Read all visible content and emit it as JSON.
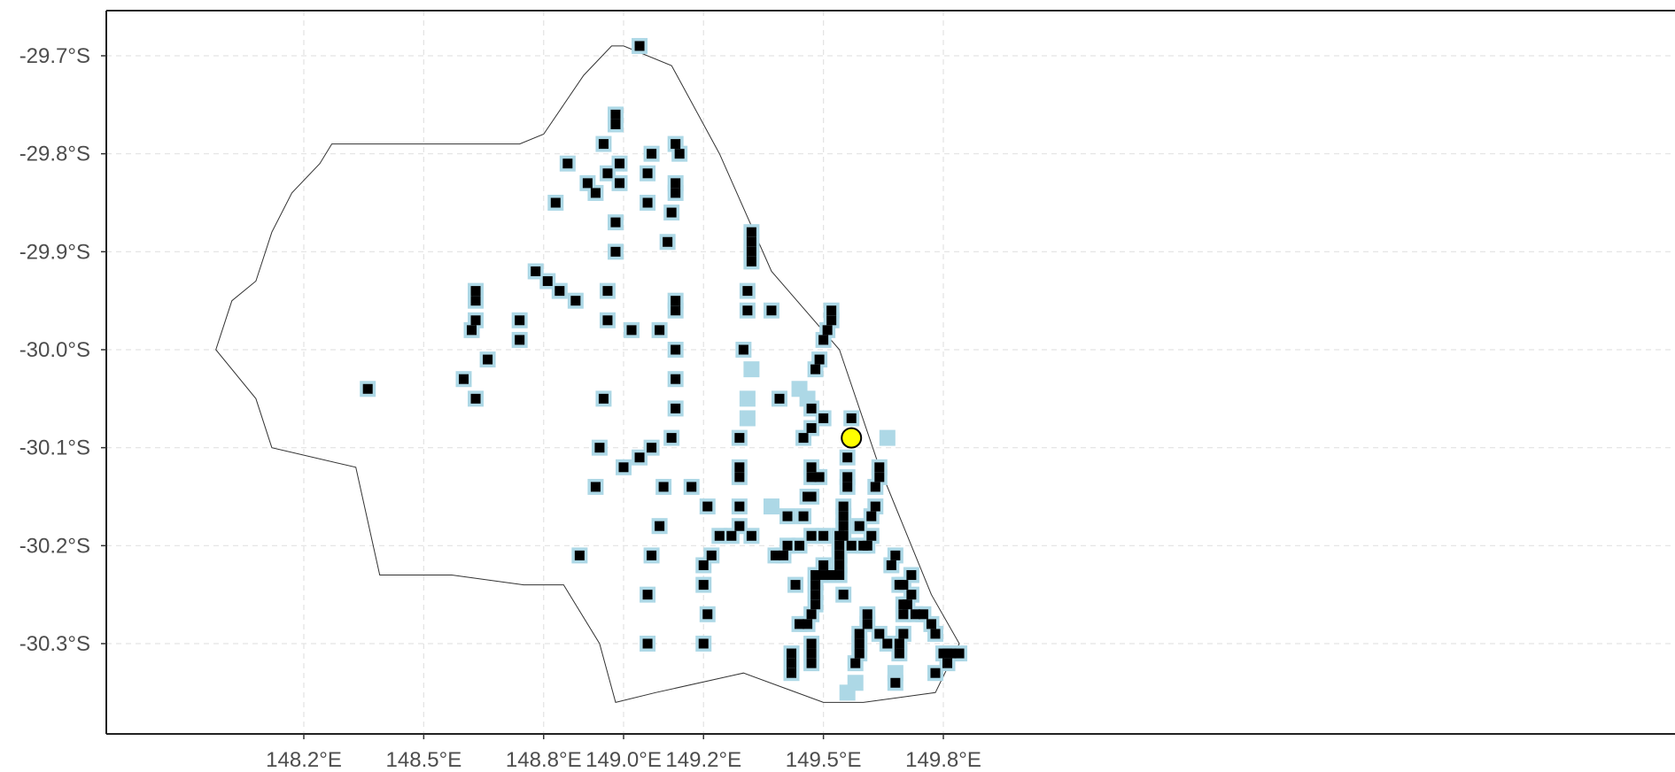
{
  "chart_data": {
    "type": "scatter",
    "title": "",
    "xlabel": "",
    "ylabel": "",
    "x_ticks": [
      {
        "value": 148.2,
        "label": "148.2°E"
      },
      {
        "value": 148.5,
        "label": "148.5°E"
      },
      {
        "value": 148.8,
        "label": "148.8°E"
      },
      {
        "value": 149.0,
        "label": "149.0°E"
      },
      {
        "value": 149.2,
        "label": "149.2°E"
      },
      {
        "value": 149.5,
        "label": "149.5°E"
      },
      {
        "value": 149.8,
        "label": "149.8°E"
      }
    ],
    "y_ticks": [
      {
        "value": -29.7,
        "label": "-29.7°S"
      },
      {
        "value": -29.8,
        "label": "-29.8°S"
      },
      {
        "value": -29.9,
        "label": "-29.9°S"
      },
      {
        "value": -30.0,
        "label": "-30.0°S"
      },
      {
        "value": -30.1,
        "label": "-30.1°S"
      },
      {
        "value": -30.2,
        "label": "-30.2°S"
      },
      {
        "value": -30.3,
        "label": "-30.3°S"
      }
    ],
    "xlim": [
      148.0,
      149.93
    ],
    "ylim": [
      -30.39,
      -29.66
    ],
    "grid": true,
    "colors": {
      "site": "#000000",
      "site_outline": "#add8e6",
      "highlight": "#ffff00",
      "boundary": "#333333"
    },
    "boundary": [
      [
        148.27,
        -29.79
      ],
      [
        148.5,
        -29.79
      ],
      [
        148.74,
        -29.79
      ],
      [
        148.8,
        -29.78
      ],
      [
        148.9,
        -29.72
      ],
      [
        148.97,
        -29.69
      ],
      [
        149.0,
        -29.69
      ],
      [
        149.12,
        -29.71
      ],
      [
        149.24,
        -29.8
      ],
      [
        149.37,
        -29.92
      ],
      [
        149.54,
        -30.0
      ],
      [
        149.64,
        -30.12
      ],
      [
        149.77,
        -30.25
      ],
      [
        149.84,
        -30.3
      ],
      [
        149.78,
        -30.35
      ],
      [
        149.6,
        -30.36
      ],
      [
        149.5,
        -30.36
      ],
      [
        149.3,
        -30.33
      ],
      [
        149.08,
        -30.35
      ],
      [
        148.98,
        -30.36
      ],
      [
        148.94,
        -30.3
      ],
      [
        148.85,
        -30.24
      ],
      [
        148.75,
        -30.24
      ],
      [
        148.57,
        -30.23
      ],
      [
        148.39,
        -30.23
      ],
      [
        148.33,
        -30.12
      ],
      [
        148.12,
        -30.1
      ],
      [
        148.08,
        -30.05
      ],
      [
        147.98,
        -30.0
      ],
      [
        148.02,
        -29.95
      ],
      [
        148.08,
        -29.93
      ],
      [
        148.12,
        -29.88
      ],
      [
        148.17,
        -29.84
      ],
      [
        148.24,
        -29.81
      ],
      [
        148.27,
        -29.79
      ]
    ],
    "series": [
      {
        "name": "",
        "points": [
          [
            149.04,
            -29.69
          ],
          [
            148.98,
            -29.76
          ],
          [
            148.98,
            -29.77
          ],
          [
            148.95,
            -29.79
          ],
          [
            148.99,
            -29.81
          ],
          [
            149.07,
            -29.8
          ],
          [
            148.96,
            -29.82
          ],
          [
            149.06,
            -29.82
          ],
          [
            148.86,
            -29.81
          ],
          [
            148.91,
            -29.83
          ],
          [
            148.93,
            -29.84
          ],
          [
            148.99,
            -29.83
          ],
          [
            148.83,
            -29.85
          ],
          [
            149.06,
            -29.85
          ],
          [
            148.98,
            -29.87
          ],
          [
            149.13,
            -29.79
          ],
          [
            149.14,
            -29.8
          ],
          [
            149.13,
            -29.83
          ],
          [
            149.13,
            -29.84
          ],
          [
            149.12,
            -29.86
          ],
          [
            149.11,
            -29.89
          ],
          [
            148.98,
            -29.9
          ],
          [
            148.78,
            -29.92
          ],
          [
            148.81,
            -29.93
          ],
          [
            148.84,
            -29.94
          ],
          [
            148.88,
            -29.95
          ],
          [
            148.96,
            -29.94
          ],
          [
            148.96,
            -29.97
          ],
          [
            148.74,
            -29.97
          ],
          [
            148.74,
            -29.99
          ],
          [
            148.63,
            -29.94
          ],
          [
            148.63,
            -29.95
          ],
          [
            148.63,
            -29.97
          ],
          [
            148.62,
            -29.98
          ],
          [
            148.6,
            -30.03
          ],
          [
            148.63,
            -30.05
          ],
          [
            148.66,
            -30.01
          ],
          [
            148.36,
            -30.04
          ],
          [
            148.95,
            -30.05
          ],
          [
            149.02,
            -29.98
          ],
          [
            149.09,
            -29.98
          ],
          [
            149.13,
            -29.95
          ],
          [
            149.13,
            -29.96
          ],
          [
            149.13,
            -30.0
          ],
          [
            149.13,
            -30.03
          ],
          [
            149.13,
            -30.06
          ],
          [
            149.12,
            -30.09
          ],
          [
            148.94,
            -30.1
          ],
          [
            149.0,
            -30.12
          ],
          [
            149.04,
            -30.11
          ],
          [
            149.07,
            -30.1
          ],
          [
            148.93,
            -30.14
          ],
          [
            149.1,
            -30.14
          ],
          [
            149.17,
            -30.14
          ],
          [
            149.09,
            -30.18
          ],
          [
            149.07,
            -30.21
          ],
          [
            149.06,
            -30.25
          ],
          [
            148.89,
            -30.21
          ],
          [
            149.06,
            -30.3
          ],
          [
            149.32,
            -29.88
          ],
          [
            149.32,
            -29.89
          ],
          [
            149.32,
            -29.9
          ],
          [
            149.32,
            -29.91
          ],
          [
            149.31,
            -29.94
          ],
          [
            149.31,
            -29.96
          ],
          [
            149.3,
            -30.0
          ],
          [
            149.29,
            -30.09
          ],
          [
            149.29,
            -30.12
          ],
          [
            149.29,
            -30.13
          ],
          [
            149.29,
            -30.16
          ],
          [
            149.29,
            -30.18
          ],
          [
            149.27,
            -30.19
          ],
          [
            149.32,
            -30.19
          ],
          [
            149.24,
            -30.19
          ],
          [
            149.22,
            -30.21
          ],
          [
            149.2,
            -30.22
          ],
          [
            149.2,
            -30.24
          ],
          [
            149.21,
            -30.27
          ],
          [
            149.2,
            -30.3
          ],
          [
            149.21,
            -30.16
          ],
          [
            149.37,
            -29.96
          ],
          [
            149.39,
            -30.05
          ],
          [
            149.41,
            -30.17
          ],
          [
            149.41,
            -30.2
          ],
          [
            149.4,
            -30.21
          ],
          [
            149.38,
            -30.21
          ],
          [
            149.45,
            -30.09
          ],
          [
            149.47,
            -30.08
          ],
          [
            149.47,
            -30.06
          ],
          [
            149.48,
            -30.02
          ],
          [
            149.49,
            -30.01
          ],
          [
            149.5,
            -29.99
          ],
          [
            149.51,
            -29.98
          ],
          [
            149.52,
            -29.97
          ],
          [
            149.52,
            -29.96
          ],
          [
            149.5,
            -30.07
          ],
          [
            149.47,
            -30.12
          ],
          [
            149.47,
            -30.13
          ],
          [
            149.47,
            -30.15
          ],
          [
            149.46,
            -30.15
          ],
          [
            149.45,
            -30.17
          ],
          [
            149.47,
            -30.19
          ],
          [
            149.44,
            -30.2
          ],
          [
            149.49,
            -30.13
          ],
          [
            149.5,
            -30.19
          ],
          [
            149.48,
            -30.23
          ],
          [
            149.5,
            -30.23
          ],
          [
            149.5,
            -30.22
          ],
          [
            149.52,
            -30.23
          ],
          [
            149.54,
            -30.19
          ],
          [
            149.48,
            -30.24
          ],
          [
            149.46,
            -30.28
          ],
          [
            149.48,
            -30.25
          ],
          [
            149.48,
            -30.26
          ],
          [
            149.47,
            -30.27
          ],
          [
            149.47,
            -30.3
          ],
          [
            149.47,
            -30.31
          ],
          [
            149.47,
            -30.32
          ],
          [
            149.42,
            -30.31
          ],
          [
            149.42,
            -30.32
          ],
          [
            149.42,
            -30.33
          ],
          [
            149.43,
            -30.24
          ],
          [
            149.44,
            -30.28
          ],
          [
            149.56,
            -30.11
          ],
          [
            149.56,
            -30.13
          ],
          [
            149.56,
            -30.14
          ],
          [
            149.55,
            -30.16
          ],
          [
            149.55,
            -30.17
          ],
          [
            149.55,
            -30.18
          ],
          [
            149.55,
            -30.19
          ],
          [
            149.54,
            -30.2
          ],
          [
            149.54,
            -30.21
          ],
          [
            149.54,
            -30.22
          ],
          [
            149.54,
            -30.23
          ],
          [
            149.55,
            -30.25
          ],
          [
            149.57,
            -30.07
          ],
          [
            149.57,
            -30.2
          ],
          [
            149.59,
            -30.18
          ],
          [
            149.6,
            -30.2
          ],
          [
            149.61,
            -30.2
          ],
          [
            149.62,
            -30.19
          ],
          [
            149.62,
            -30.17
          ],
          [
            149.63,
            -30.16
          ],
          [
            149.63,
            -30.14
          ],
          [
            149.64,
            -30.13
          ],
          [
            149.64,
            -30.12
          ],
          [
            149.67,
            -30.22
          ],
          [
            149.61,
            -30.27
          ],
          [
            149.61,
            -30.28
          ],
          [
            149.59,
            -30.29
          ],
          [
            149.59,
            -30.3
          ],
          [
            149.59,
            -30.31
          ],
          [
            149.58,
            -30.32
          ],
          [
            149.64,
            -30.29
          ],
          [
            149.66,
            -30.3
          ],
          [
            149.69,
            -30.3
          ],
          [
            149.7,
            -30.29
          ],
          [
            149.68,
            -30.21
          ],
          [
            149.69,
            -30.24
          ],
          [
            149.7,
            -30.24
          ],
          [
            149.7,
            -30.26
          ],
          [
            149.7,
            -30.27
          ],
          [
            149.71,
            -30.26
          ],
          [
            149.72,
            -30.25
          ],
          [
            149.72,
            -30.23
          ],
          [
            149.73,
            -30.27
          ],
          [
            149.75,
            -30.27
          ],
          [
            149.77,
            -30.28
          ],
          [
            149.78,
            -30.29
          ],
          [
            149.78,
            -30.33
          ],
          [
            149.8,
            -30.31
          ],
          [
            149.81,
            -30.31
          ],
          [
            149.81,
            -30.32
          ],
          [
            149.82,
            -30.31
          ],
          [
            149.84,
            -30.31
          ],
          [
            149.68,
            -30.34
          ],
          [
            149.69,
            -30.31
          ]
        ]
      },
      {
        "name": "",
        "points": [
          [
            149.57,
            -30.09
          ]
        ]
      }
    ],
    "extra_outline_only": [
      [
        149.32,
        -30.02
      ],
      [
        149.31,
        -30.05
      ],
      [
        149.31,
        -30.07
      ],
      [
        149.44,
        -30.04
      ],
      [
        149.46,
        -30.05
      ],
      [
        149.66,
        -30.09
      ],
      [
        149.37,
        -30.16
      ],
      [
        149.58,
        -30.34
      ],
      [
        149.68,
        -30.33
      ],
      [
        149.56,
        -30.35
      ]
    ]
  }
}
